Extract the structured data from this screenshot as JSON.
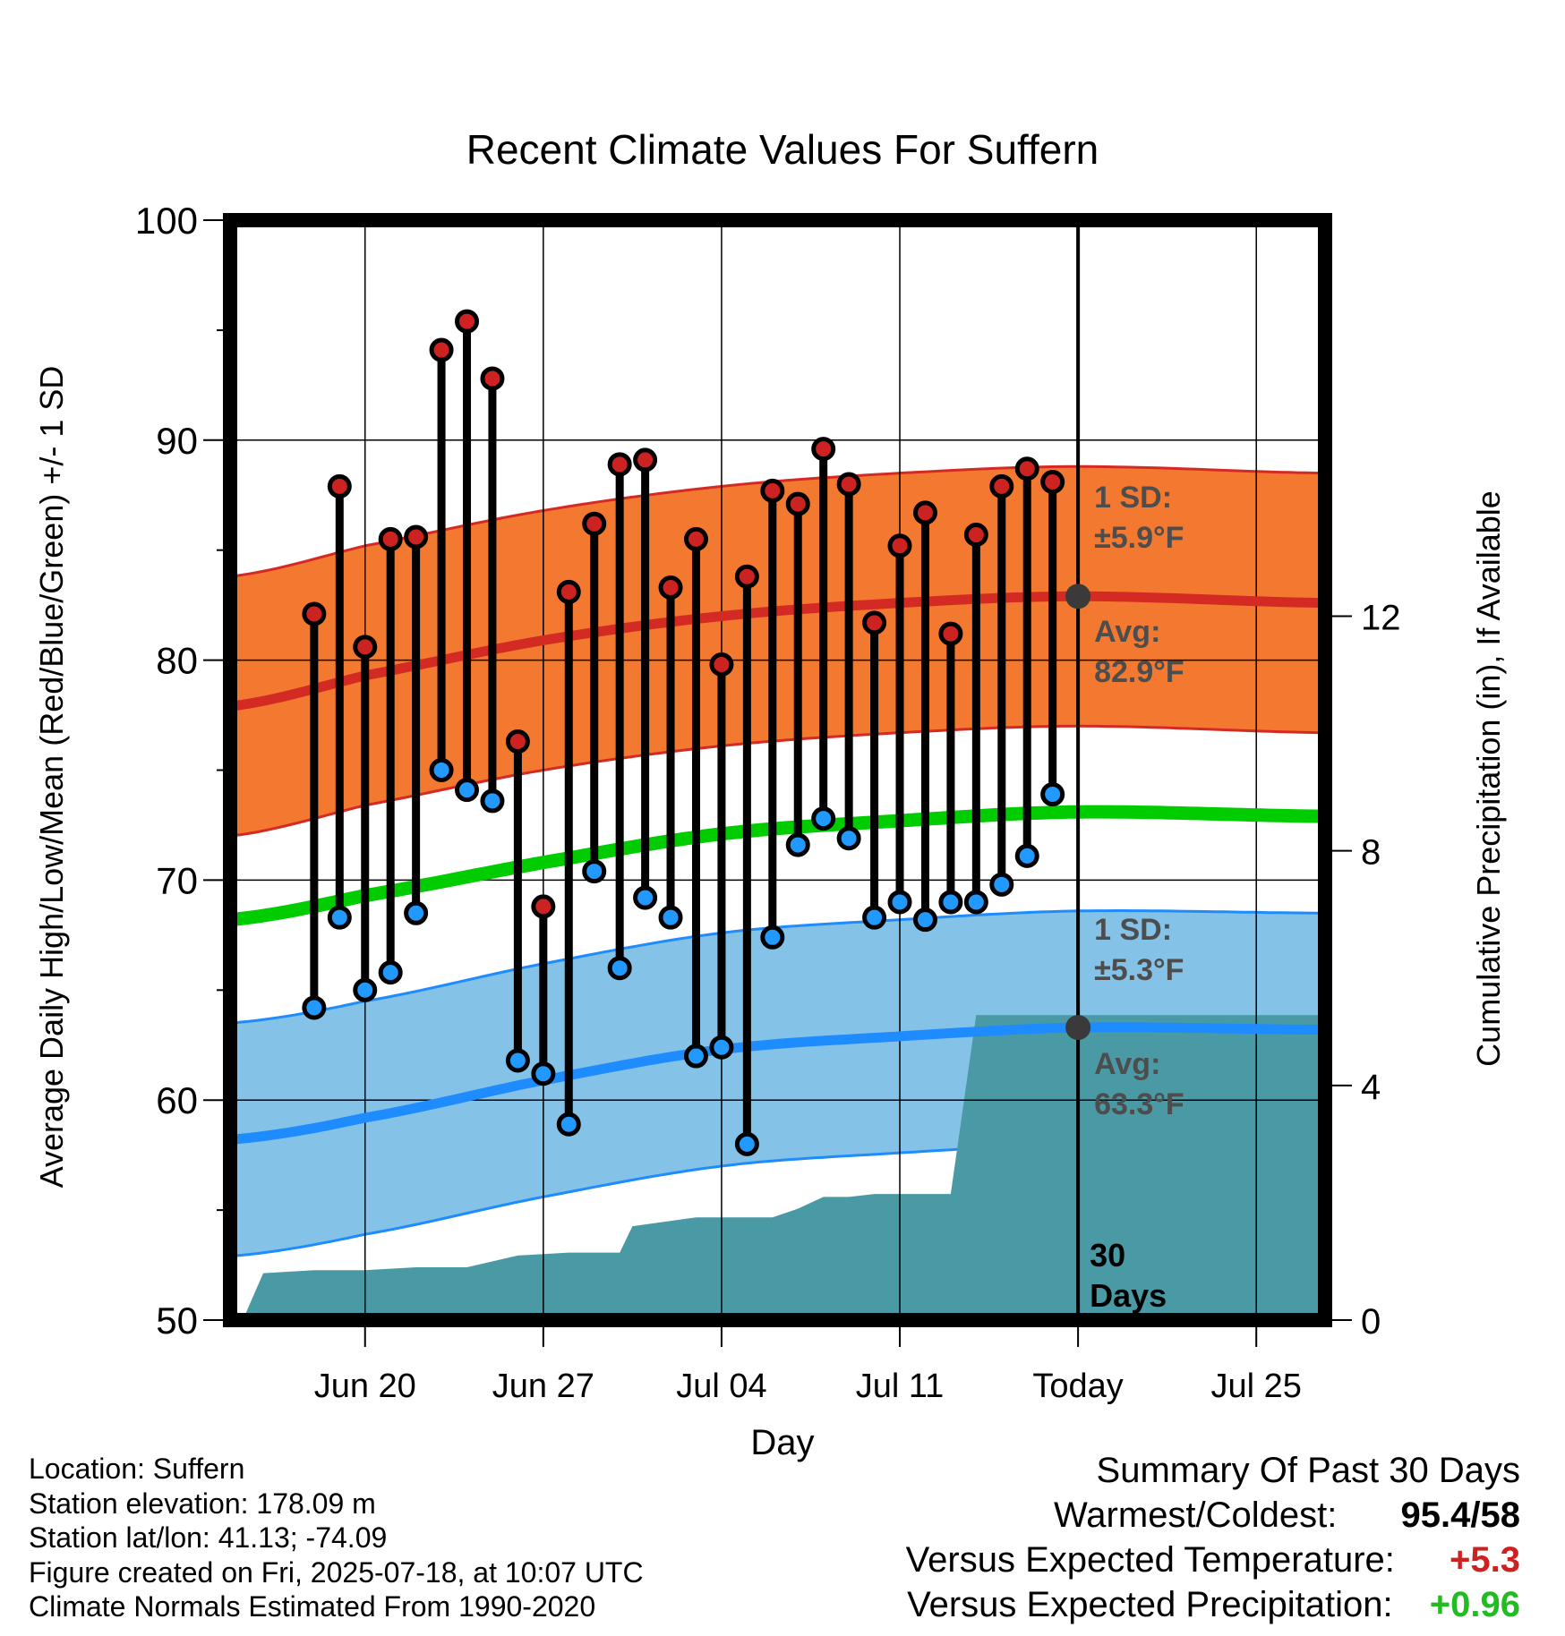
{
  "chart_data": {
    "type": "line",
    "title": "Recent Climate Values For Suffern",
    "xlabel": "Day",
    "ylabel": "Average Daily High/Low/Mean (Red/Blue/Green) +/- 1 SD",
    "y2label": "Cumulative Precipitation (in), If Available",
    "ylim": [
      50,
      100
    ],
    "y2lim": [
      0,
      18.75
    ],
    "xlim_days": [
      -33.3,
      9.7
    ],
    "y_ticks": [
      "50",
      "60",
      "70",
      "80",
      "90",
      "100"
    ],
    "y2_ticks": [
      "0",
      "4",
      "8",
      "12"
    ],
    "x_ticks": [
      {
        "label": "Jun 20",
        "day": -28
      },
      {
        "label": "Jun 27",
        "day": -21
      },
      {
        "label": "Jul 04",
        "day": -14
      },
      {
        "label": "Jul 11",
        "day": -7
      },
      {
        "label": "Today",
        "day": 0
      },
      {
        "label": "Jul 25",
        "day": 7
      }
    ],
    "grid": true,
    "today_marker": {
      "label_line1": "30",
      "label_line2": "Days"
    },
    "daily_observations": {
      "days": [
        -30,
        -29,
        -28,
        -27,
        -26,
        -25,
        -24,
        -23,
        -22,
        -21,
        -20,
        -19,
        -18,
        -17,
        -16,
        -15,
        -14,
        -13,
        -12,
        -11,
        -10,
        -9,
        -8,
        -7,
        -6,
        -5,
        -4,
        -3,
        -2,
        -1
      ],
      "highs": [
        82.1,
        87.9,
        80.6,
        85.5,
        85.6,
        94.1,
        95.4,
        92.8,
        76.3,
        68.8,
        83.1,
        86.2,
        88.9,
        89.1,
        83.3,
        85.5,
        79.8,
        83.8,
        87.7,
        87.1,
        89.6,
        88.0,
        81.7,
        85.2,
        86.7,
        81.2,
        85.7,
        87.9,
        88.7,
        88.1
      ],
      "lows": [
        64.2,
        68.3,
        65.0,
        65.8,
        68.5,
        75.0,
        74.1,
        73.6,
        61.8,
        61.2,
        58.9,
        70.4,
        66.0,
        69.2,
        68.3,
        62.0,
        62.4,
        58.0,
        67.4,
        71.6,
        72.8,
        71.9,
        68.3,
        69.0,
        68.2,
        69.0,
        69.0,
        69.8,
        71.1,
        73.9
      ]
    },
    "normals": {
      "days": [
        -33.3,
        -28,
        -21,
        -14,
        -7,
        0,
        9.7
      ],
      "avg_high": [
        77.9,
        79.3,
        80.9,
        82.0,
        82.6,
        82.9,
        82.6
      ],
      "avg_low": [
        58.2,
        59.2,
        60.9,
        62.3,
        62.9,
        63.3,
        63.2
      ],
      "avg_mean": [
        68.2,
        69.3,
        70.8,
        72.1,
        72.7,
        73.1,
        72.9
      ]
    },
    "high_sd": 5.9,
    "low_sd": 5.3,
    "high_annotation": {
      "sd_label": "1 SD:",
      "sd_value": "±5.9°F",
      "avg_label": "Avg:",
      "avg_value": "82.9°F",
      "avg_point": 82.9
    },
    "low_annotation": {
      "sd_label": "1 SD:",
      "sd_value": "±5.3°F",
      "avg_label": "Avg:",
      "avg_value": "63.3°F",
      "avg_point": 63.3
    },
    "precipitation": {
      "days": [
        -32.8,
        -32,
        -30,
        -28,
        -26,
        -24,
        -22,
        -20,
        -18,
        -17.5,
        -15,
        -14,
        -12,
        -11,
        -10,
        -9,
        -8,
        -6,
        -5,
        -4,
        -3,
        -2,
        -1,
        0,
        9.7
      ],
      "cumulative": [
        0,
        0.8,
        0.85,
        0.85,
        0.9,
        0.9,
        1.1,
        1.15,
        1.15,
        1.6,
        1.75,
        1.75,
        1.75,
        1.9,
        2.1,
        2.1,
        2.15,
        2.15,
        2.15,
        5.2,
        5.2,
        5.2,
        5.2,
        5.2,
        5.2
      ]
    },
    "colors": {
      "high_band": "#f47930",
      "high_line": "#d42a24",
      "low_band": "#84c2e8",
      "low_line": "#1e8cff",
      "mean_line": "#00cc00",
      "precip_fill": "#4a9aa5",
      "high_dot": "#cc2222",
      "low_dot": "#2299ff",
      "avg_dot": "#3a3a3a"
    }
  },
  "footer": {
    "location": "Location: Suffern",
    "elevation": "Station elevation: 178.09 m",
    "latlon": "Station lat/lon: 41.13; -74.09",
    "created": "Figure created on Fri, 2025-07-18, at 10:07 UTC",
    "normals": "Climate Normals Estimated From 1990-2020"
  },
  "summary": {
    "title": "Summary Of Past 30 Days",
    "warm_cold_label": "Warmest/Coldest:",
    "warm_cold_value": "95.4/58",
    "temp_label": "Versus Expected Temperature:",
    "temp_value": "+5.3",
    "temp_color": "#cc2222",
    "precip_label": "Versus Expected Precipitation:",
    "precip_value": "+0.96",
    "precip_color": "#22bb22"
  }
}
